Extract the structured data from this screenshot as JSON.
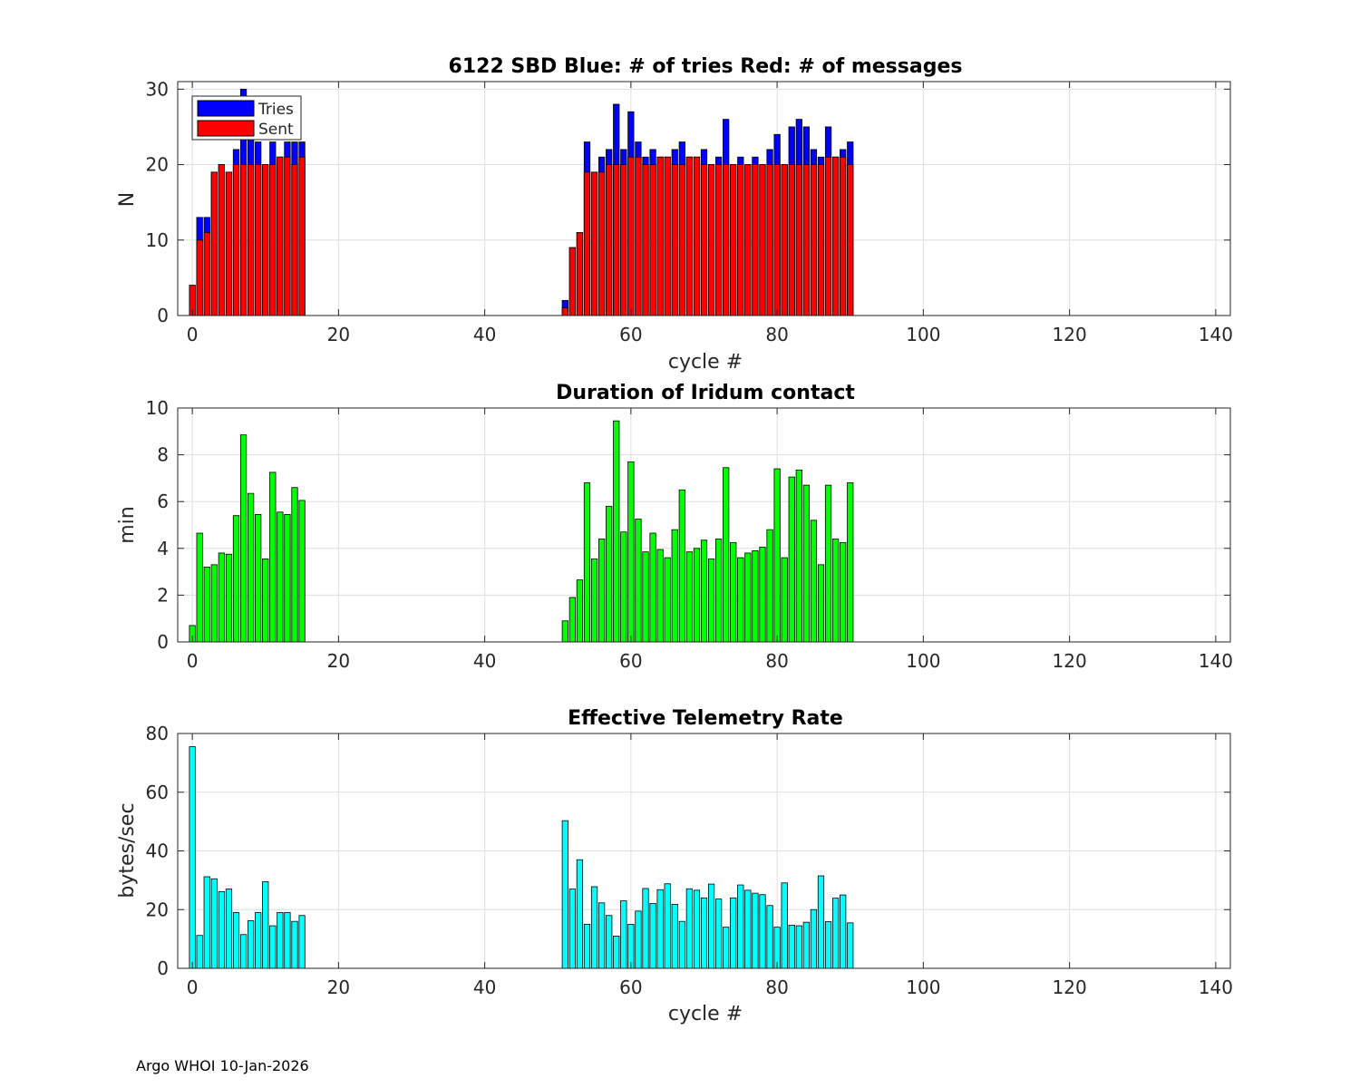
{
  "footer": "Argo WHOI 10-Jan-2026",
  "chart_data": [
    {
      "type": "bar",
      "title": "6122 SBD  Blue: # of tries   Red: # of messages",
      "xlabel": "cycle #",
      "ylabel": "N",
      "xlim": [
        -2,
        142
      ],
      "ylim": [
        0,
        31
      ],
      "xticks": [
        0,
        20,
        40,
        60,
        80,
        100,
        120,
        140
      ],
      "yticks": [
        0,
        10,
        20,
        30
      ],
      "grid": true,
      "legend": {
        "placement": "top-left",
        "entries": [
          "Tries",
          "Sent"
        ]
      },
      "x": [
        0,
        1,
        2,
        3,
        4,
        5,
        6,
        7,
        8,
        9,
        10,
        11,
        12,
        13,
        14,
        15,
        51,
        52,
        53,
        54,
        55,
        56,
        57,
        58,
        59,
        60,
        61,
        62,
        63,
        64,
        65,
        66,
        67,
        68,
        69,
        70,
        71,
        72,
        73,
        74,
        75,
        76,
        77,
        78,
        79,
        80,
        81,
        82,
        83,
        84,
        85,
        86,
        87,
        88,
        89,
        90
      ],
      "series": [
        {
          "name": "Tries",
          "color": "#0000ff",
          "values": [
            4,
            13,
            13,
            19,
            20,
            19,
            22,
            30,
            24,
            23,
            20,
            23,
            21,
            23,
            23,
            23,
            2,
            9,
            11,
            23,
            19,
            21,
            22,
            28,
            22,
            27,
            23,
            21,
            22,
            21,
            21,
            22,
            23,
            21,
            21,
            22,
            20,
            21,
            26,
            20,
            21,
            20,
            21,
            20,
            22,
            24,
            20,
            25,
            26,
            25,
            22,
            21,
            25,
            21,
            22,
            23
          ]
        },
        {
          "name": "Sent",
          "color": "#ff0000",
          "values": [
            4,
            10,
            11,
            19,
            20,
            19,
            20,
            20,
            20,
            20,
            20,
            20,
            21,
            21,
            20,
            21,
            1,
            9,
            11,
            19,
            19,
            19,
            20,
            20,
            20,
            21,
            21,
            20,
            20,
            21,
            21,
            20,
            20,
            21,
            21,
            20,
            20,
            20,
            20,
            20,
            20,
            20,
            20,
            20,
            20,
            20,
            20,
            20,
            20,
            20,
            20,
            20,
            21,
            21,
            21,
            20
          ]
        }
      ]
    },
    {
      "type": "bar",
      "title": "Duration of Iridum contact",
      "xlabel": "",
      "ylabel": "min",
      "xlim": [
        -2,
        142
      ],
      "ylim": [
        0,
        10
      ],
      "xticks": [
        0,
        20,
        40,
        60,
        80,
        100,
        120,
        140
      ],
      "yticks": [
        0,
        2,
        4,
        6,
        8,
        10
      ],
      "grid": true,
      "x": [
        0,
        1,
        2,
        3,
        4,
        5,
        6,
        7,
        8,
        9,
        10,
        11,
        12,
        13,
        14,
        15,
        51,
        52,
        53,
        54,
        55,
        56,
        57,
        58,
        59,
        60,
        61,
        62,
        63,
        64,
        65,
        66,
        67,
        68,
        69,
        70,
        71,
        72,
        73,
        74,
        75,
        76,
        77,
        78,
        79,
        80,
        81,
        82,
        83,
        84,
        85,
        86,
        87,
        88,
        89,
        90
      ],
      "series": [
        {
          "name": "Duration",
          "color": "#00ff00",
          "values": [
            0.7,
            4.65,
            3.2,
            3.3,
            3.8,
            3.75,
            5.4,
            8.85,
            6.35,
            5.45,
            3.55,
            7.25,
            5.55,
            5.45,
            6.6,
            6.05,
            0.9,
            1.9,
            2.65,
            6.8,
            3.55,
            4.4,
            5.8,
            9.45,
            4.7,
            7.7,
            5.25,
            3.85,
            4.65,
            3.95,
            3.6,
            4.8,
            6.5,
            3.85,
            4.0,
            4.35,
            3.55,
            4.4,
            7.45,
            4.25,
            3.6,
            3.8,
            3.9,
            4.05,
            4.8,
            7.4,
            3.6,
            7.05,
            7.35,
            6.7,
            5.2,
            3.3,
            6.7,
            4.4,
            4.25,
            6.8
          ]
        }
      ]
    },
    {
      "type": "bar",
      "title": "Effective Telemetry Rate",
      "xlabel": "cycle #",
      "ylabel": "bytes/sec",
      "xlim": [
        -2,
        142
      ],
      "ylim": [
        0,
        80
      ],
      "xticks": [
        0,
        20,
        40,
        60,
        80,
        100,
        120,
        140
      ],
      "yticks": [
        0,
        20,
        40,
        60,
        80
      ],
      "grid": true,
      "x": [
        0,
        1,
        2,
        3,
        4,
        5,
        6,
        7,
        8,
        9,
        10,
        11,
        12,
        13,
        14,
        15,
        51,
        52,
        53,
        54,
        55,
        56,
        57,
        58,
        59,
        60,
        61,
        62,
        63,
        64,
        65,
        66,
        67,
        68,
        69,
        70,
        71,
        72,
        73,
        74,
        75,
        76,
        77,
        78,
        79,
        80,
        81,
        82,
        83,
        84,
        85,
        86,
        87,
        88,
        89,
        90
      ],
      "series": [
        {
          "name": "Rate",
          "color": "#00ffff",
          "values": [
            75.5,
            11.2,
            31.2,
            30.5,
            26.1,
            27.0,
            19.0,
            11.5,
            16.2,
            19.0,
            29.5,
            14.5,
            19.0,
            19.0,
            16.0,
            18.0,
            50.3,
            27.0,
            37.0,
            15.0,
            27.8,
            22.3,
            18.0,
            11.0,
            23.0,
            15.0,
            19.5,
            27.2,
            22.1,
            26.8,
            28.8,
            21.8,
            16.0,
            27.1,
            26.6,
            24.0,
            28.7,
            23.6,
            14.0,
            24.0,
            28.4,
            26.6,
            25.6,
            25.1,
            21.4,
            14.0,
            29.1,
            14.7,
            14.5,
            15.7,
            20.0,
            31.5,
            15.9,
            23.9,
            25.0,
            15.5
          ]
        }
      ]
    }
  ]
}
